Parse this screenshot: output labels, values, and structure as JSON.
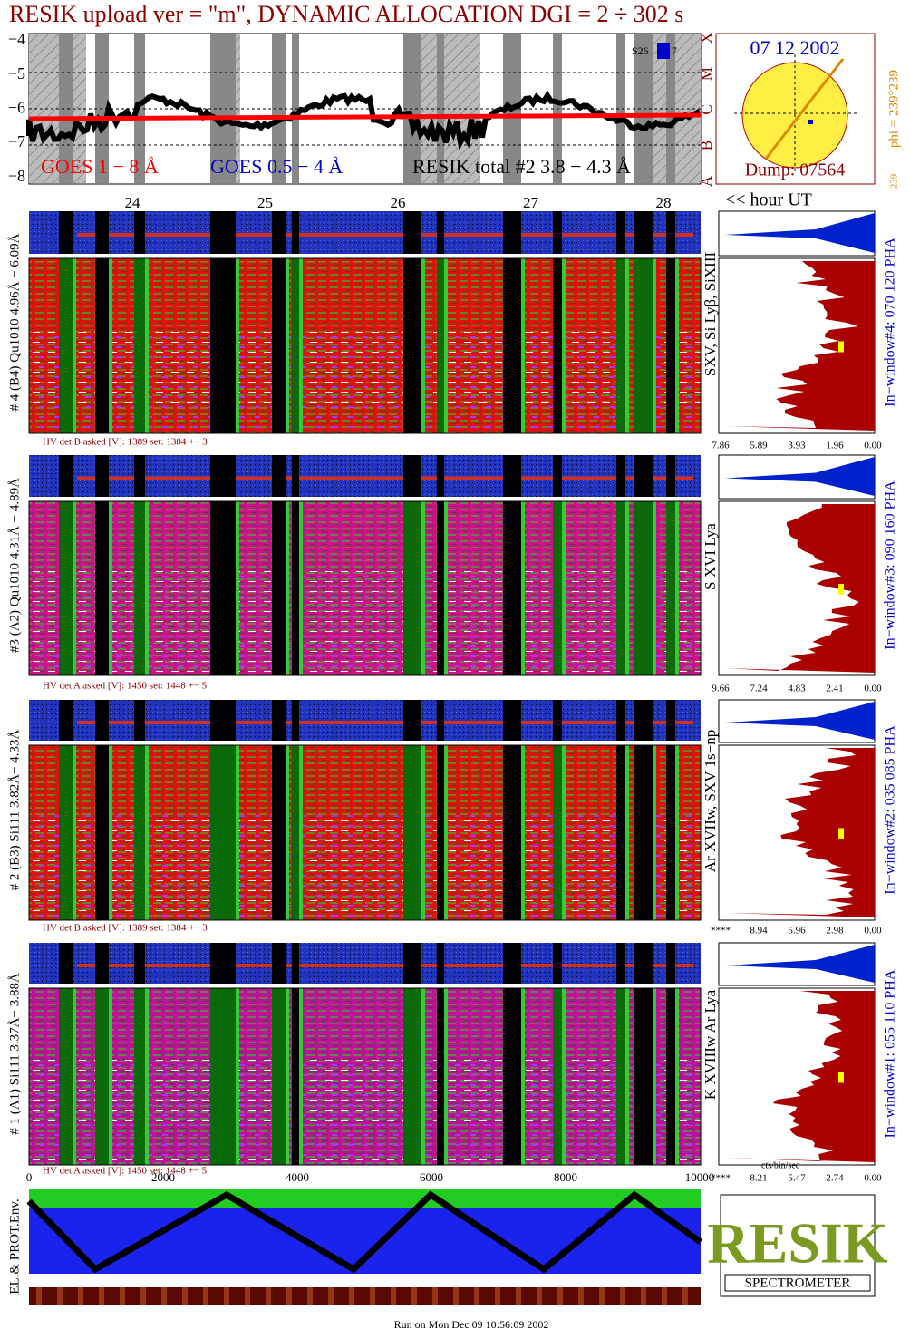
{
  "title": "RESIK upload ver = \"m\", DYNAMIC ALLOCATION  DGI =   2 ÷ 302 s",
  "goes_panel": {
    "y_ticks": [
      "−4",
      "−5",
      "−6",
      "−7",
      "−8"
    ],
    "flare_classes": [
      "X",
      "M",
      "C",
      "B",
      "A"
    ],
    "legend": [
      "GOES 1 − 8 Å",
      "GOES 0.5 − 4 Å",
      "RESIK total #2  3.8 − 4.3 Å"
    ],
    "marker_labels": [
      "S26",
      "7"
    ]
  },
  "sun_panel": {
    "date": "07 12 2002",
    "dump": "Dump: 07564",
    "phi": "phi = 239°239",
    "bottom": "239"
  },
  "hour_axis": {
    "labels": [
      "24",
      "25",
      "26",
      "27",
      "28"
    ],
    "unit": "<< hour UT"
  },
  "detectors": [
    {
      "label": "# 4 (B4) Qu1010 4.96Å − 6.09Å",
      "lines": "SXV, Si Lyβ, SiXIII",
      "window": "In−window#4:  070 120 PHA",
      "hv": "HV det B asked [V]:  1389 set:  1384  +−   3",
      "hist_ticks": [
        "7.86",
        "5.89",
        "3.93",
        "1.96",
        "0.00"
      ]
    },
    {
      "label": "#3 (A2) Qu1010  4.31Å − 4.89Å",
      "lines": "S XVI Lya",
      "window": "In−window#3:  090 160 PHA",
      "hv": "HV det A asked [V]:  1450 set:  1448  +−   5",
      "hist_ticks": [
        "9.66",
        "7.24",
        "4.83",
        "2.41",
        "0.00"
      ]
    },
    {
      "label": "# 2 (B3) Si111  3.82Å− 4.33Å",
      "lines": "Ar XVIIw, SXV 1s−np",
      "window": "In−window#2:  035 085 PHA",
      "hv": "HV det B asked [V]:  1389 set:  1384  +−   3",
      "hist_ticks": [
        "****",
        "8.94",
        "5.96",
        "2.98",
        "0.00"
      ]
    },
    {
      "label": "# 1 (A1) Si111  3.37Å− 3.88Å",
      "lines": "K XVIIIw  Ar Lya",
      "window": "In−window#1:  055 110 PHA",
      "hv": "HV det A asked [V]:  1450 set:  1448  +−   5",
      "hist_ticks": [
        "****",
        "8.21",
        "5.47",
        "2.74",
        "0.00"
      ]
    }
  ],
  "x_axis": {
    "ticks": [
      "0",
      "2000",
      "4000",
      "6000",
      "8000",
      "10000"
    ],
    "unit": "cts/bin/sec"
  },
  "environment": {
    "label": "EL.& PROT.Env."
  },
  "logo": {
    "name": "RESIK",
    "text": "SPECTROMETER"
  },
  "footer": "Run on Mon Dec 09 10:56:09 2002"
}
